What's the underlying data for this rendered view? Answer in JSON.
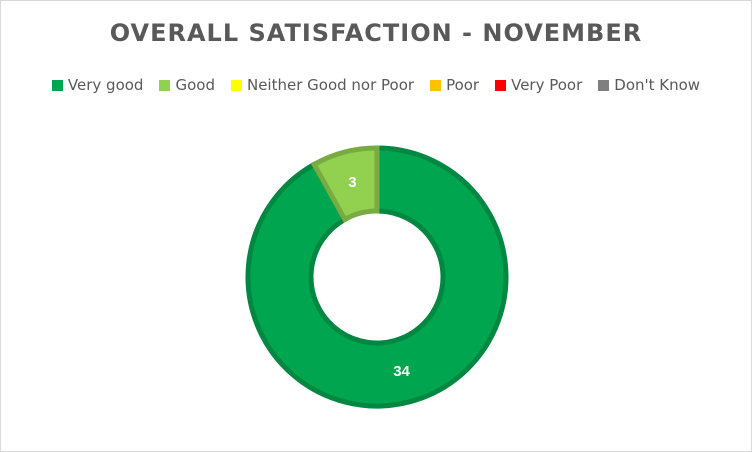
{
  "chart_data": {
    "type": "pie",
    "subtype": "donut",
    "title": "OVERALL SATISFACTION - NOVEMBER",
    "legend_position": "top",
    "categories": [
      "Very good",
      "Good",
      "Neither Good nor Poor",
      "Poor",
      "Very Poor",
      "Don't Know"
    ],
    "values": [
      34,
      3,
      0,
      0,
      0,
      0
    ],
    "colors": [
      "#00a54f",
      "#92d050",
      "#ffff00",
      "#ffc000",
      "#ff0000",
      "#7f7f7f"
    ],
    "data_labels": [
      "34",
      "3",
      "",
      "",
      "",
      ""
    ]
  }
}
